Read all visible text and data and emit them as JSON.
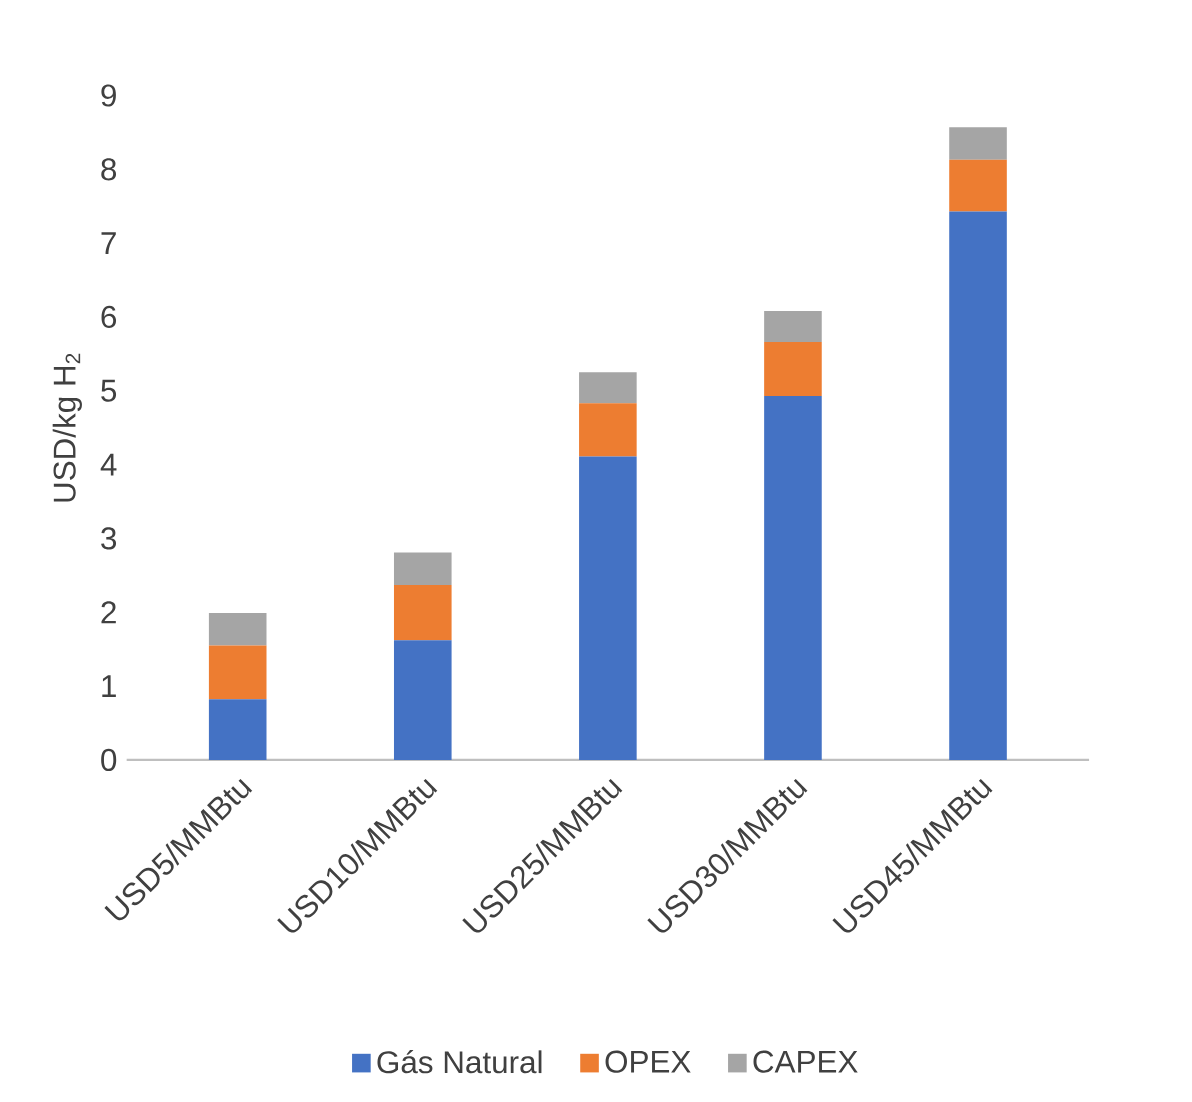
{
  "chart_data": {
    "type": "bar",
    "stacked": true,
    "ylabel": "USD/kg H$_{2}$",
    "categories": [
      "USD5/MMBtu",
      "USD10/MMBtu",
      "USD25/MMBtu",
      "USD30/MMBtu",
      "USD45/MMBtu"
    ],
    "series": [
      {
        "name": "Gás Natural",
        "color": "#4472c4",
        "values": [
          0.82,
          1.62,
          4.11,
          4.93,
          7.43
        ]
      },
      {
        "name": "OPEX",
        "color": "#ed7d31",
        "values": [
          0.73,
          0.75,
          0.72,
          0.73,
          0.7
        ]
      },
      {
        "name": "CAPEX",
        "color": "#a5a5a5",
        "values": [
          0.44,
          0.44,
          0.42,
          0.42,
          0.44
        ]
      }
    ],
    "ylim": [
      0,
      9
    ],
    "yticks": [
      0,
      1,
      2,
      3,
      4,
      5,
      6,
      7,
      8,
      9
    ],
    "grid": false,
    "legend": "bottom"
  }
}
